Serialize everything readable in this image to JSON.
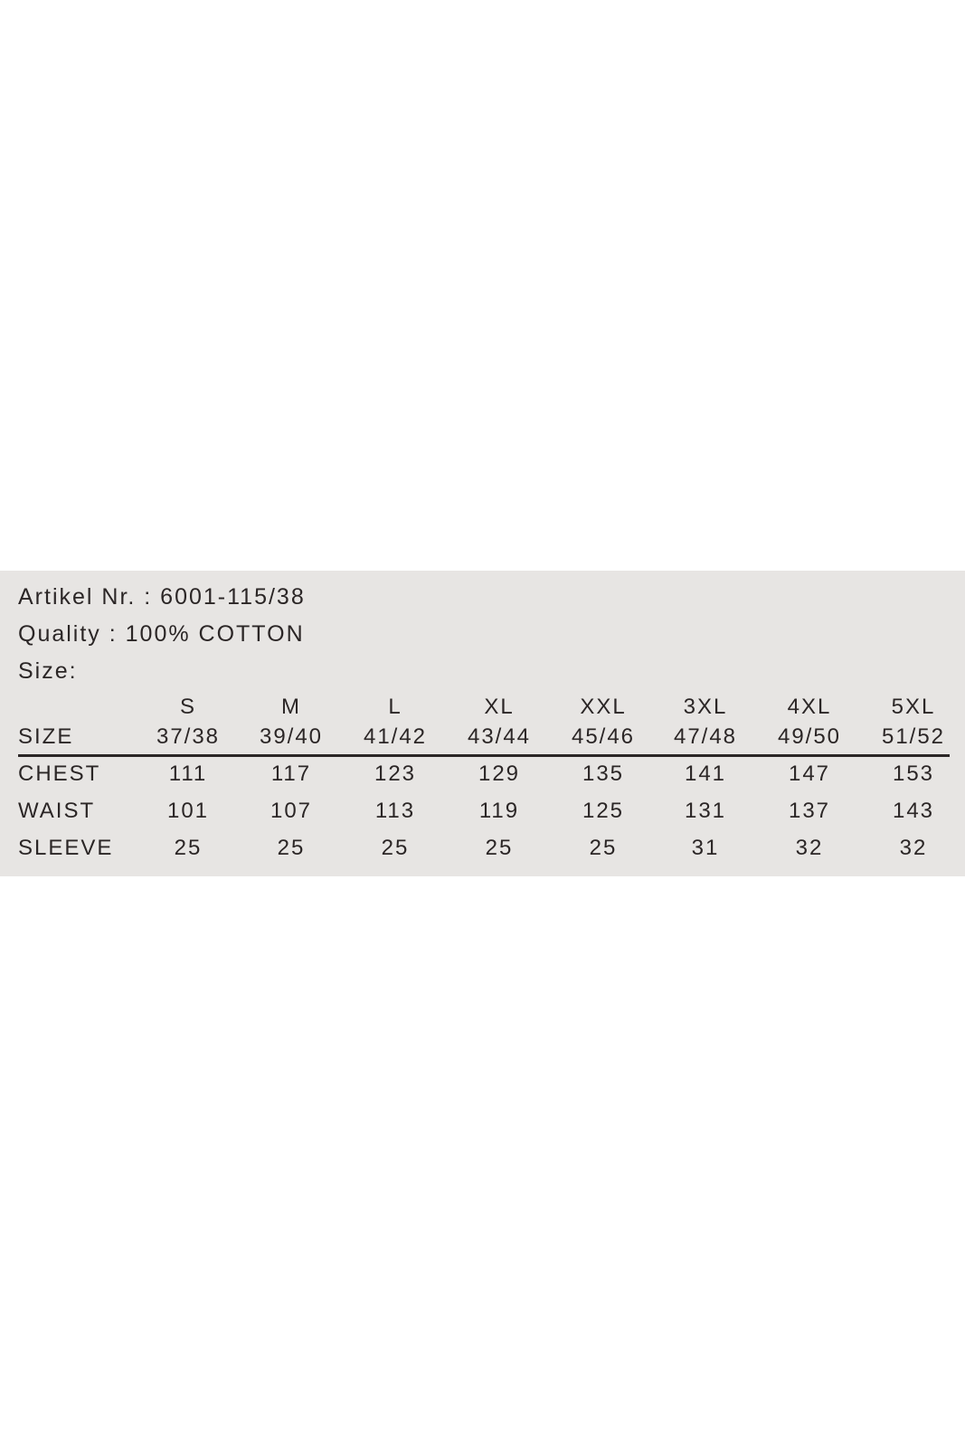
{
  "label": {
    "article": "Artikel Nr. : 6001-115/38",
    "quality": "Quality : 100% COTTON",
    "size_heading": "Size:",
    "size_row_label": "SIZE",
    "sizes": [
      "S",
      "M",
      "L",
      "XL",
      "XXL",
      "3XL",
      "4XL",
      "5XL"
    ],
    "size_numbers": [
      "37/38",
      "39/40",
      "41/42",
      "43/44",
      "45/46",
      "47/48",
      "49/50",
      "51/52"
    ],
    "rows": [
      {
        "label": "CHEST",
        "values": [
          "111",
          "117",
          "123",
          "129",
          "135",
          "141",
          "147",
          "153"
        ]
      },
      {
        "label": "WAIST",
        "values": [
          "101",
          "107",
          "113",
          "119",
          "125",
          "131",
          "137",
          "143"
        ]
      },
      {
        "label": "SLEEVE",
        "values": [
          "25",
          "25",
          "25",
          "25",
          "25",
          "31",
          "32",
          "32"
        ]
      }
    ]
  },
  "colors": {
    "label_background": "#e7e5e3",
    "text": "#2b2626"
  }
}
